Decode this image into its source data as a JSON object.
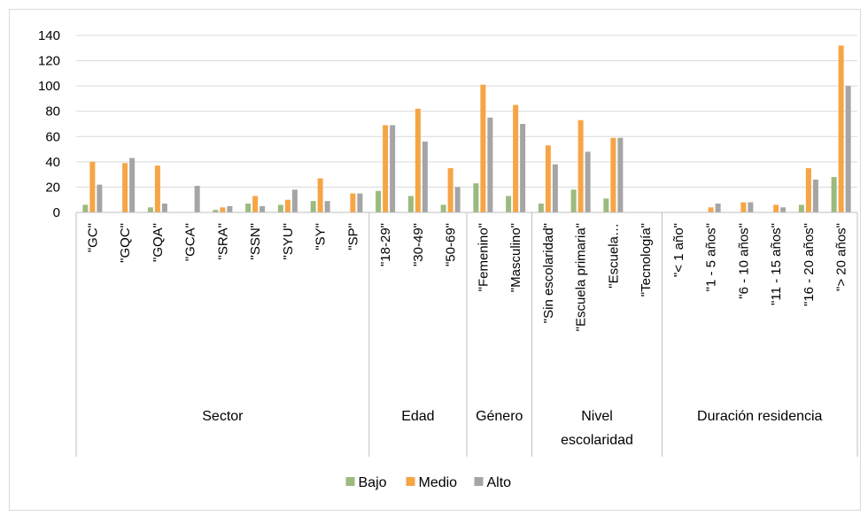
{
  "colors": {
    "Bajo": "#9bbb7e",
    "Medio": "#f6a545",
    "Alto": "#a5a5a5",
    "grid": "#d9d9d9",
    "axis": "#bfbfbf"
  },
  "chart_data": {
    "type": "bar",
    "title": "",
    "xlabel": "",
    "ylabel": "",
    "ylim": [
      0,
      140
    ],
    "y_ticks": [
      "0",
      "20",
      "40",
      "60",
      "80",
      "100",
      "120",
      "140"
    ],
    "grid": true,
    "legend_position": "bottom",
    "categories": [
      "\"GC\"",
      "\"GQC\"",
      "\"GQA\"",
      "\"GCA\"",
      "\"SRA\"",
      "\"SSN\"",
      "\"SYU\"",
      "\"SY\"",
      "\"SP\"",
      "\"18-29\"",
      "\"30-49\"",
      "\"50-69\"",
      "\"Femenino\"",
      "\"Masculino\"",
      "\"Sin escolaridad\"",
      "\"Escuela primaria\"",
      "\"Escuela…",
      "\"Tecnología\"",
      "\"< 1 año\"",
      "\"1 - 5 años\"",
      "\"6 - 10 años\"",
      "\"11 - 15 años\"",
      "\"16 - 20 años\"",
      "\"> 20 años\""
    ],
    "groups": [
      {
        "label": "Sector",
        "count": 9
      },
      {
        "label": "Edad",
        "count": 3
      },
      {
        "label": "Género",
        "count": 2
      },
      {
        "label": "Nivel escolaridad",
        "lines": [
          "Nivel",
          "escolaridad"
        ],
        "count": 4
      },
      {
        "label": "Duración residencia",
        "count": 6
      }
    ],
    "series": [
      {
        "name": "Bajo",
        "values": [
          6,
          0,
          4,
          0,
          2,
          7,
          6,
          9,
          0,
          17,
          13,
          6,
          23,
          13,
          7,
          18,
          11,
          0,
          0,
          0,
          0,
          0,
          6,
          28
        ]
      },
      {
        "name": "Medio",
        "values": [
          40,
          39,
          37,
          0,
          4,
          13,
          10,
          27,
          15,
          69,
          82,
          35,
          101,
          85,
          53,
          73,
          59,
          0,
          0,
          4,
          8,
          6,
          35,
          132
        ]
      },
      {
        "name": "Alto",
        "values": [
          22,
          43,
          7,
          21,
          5,
          5,
          18,
          9,
          15,
          69,
          56,
          20,
          75,
          70,
          38,
          48,
          59,
          0,
          0,
          7,
          8,
          4,
          26,
          100
        ]
      }
    ]
  }
}
